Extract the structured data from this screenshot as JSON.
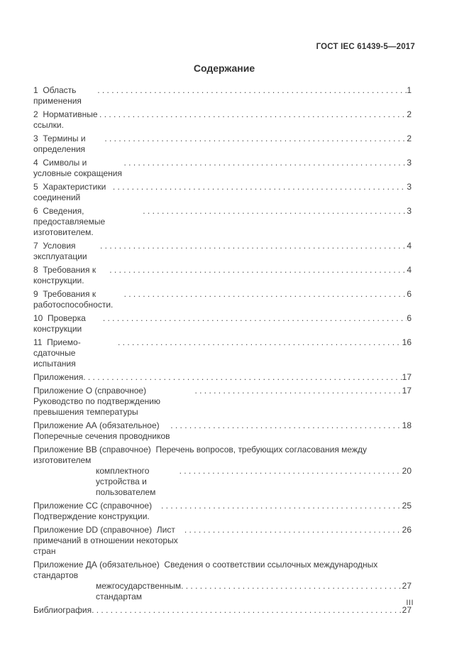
{
  "page": {
    "header": "ГОСТ IEC 61439-5—2017",
    "title": "Содержание",
    "footer_page_number": "III"
  },
  "colors": {
    "background": "#ffffff",
    "text": "#3c3c3c"
  },
  "toc": {
    "entries": [
      {
        "text": "1  Область применения",
        "page": "1"
      },
      {
        "text": "2  Нормативные ссылки.",
        "page": "2"
      },
      {
        "text": "3  Термины и определения",
        "page": "2"
      },
      {
        "text": "4  Символы и условные сокращения",
        "page": "3"
      },
      {
        "text": "5  Характеристики соединений",
        "page": "3"
      },
      {
        "text": "6  Сведения, предоставляемые изготовителем.",
        "page": "3"
      },
      {
        "text": "7  Условия эксплуатации",
        "page": "4"
      },
      {
        "text": "8  Требования к конструкции.",
        "page": "4"
      },
      {
        "text": "9  Требования к работоспособности.",
        "page": "6"
      },
      {
        "text": "10  Проверка конструкции",
        "page": "6"
      },
      {
        "text": "11  Приемо-сдаточные испытания",
        "page": "16"
      },
      {
        "text": "Приложения",
        "page": "17"
      },
      {
        "text": "Приложение О (справочное)  Руководство по подтверждению превышения температуры",
        "page": "17"
      },
      {
        "text": "Приложение АА (обязательное)  Поперечные сечения проводников",
        "page": "18"
      },
      {
        "text": "Приложение ВВ (справочное)  Перечень вопросов, требующих согласования между изготовителем",
        "text2": "комплектного устройства и пользователем",
        "page": "20"
      },
      {
        "text": "Приложение СС (справочное)  Подтверждение конструкции.",
        "page": "25"
      },
      {
        "text": "Приложение DD (справочное)  Лист примечаний в отношении некоторых стран",
        "page": "26"
      },
      {
        "text": "Приложение ДА (обязательное)  Сведения о соответствии ссылочных международных стандартов",
        "text2": "межгосударственным стандартам",
        "page": "27"
      },
      {
        "text": "Библиография",
        "page": "27"
      }
    ]
  }
}
